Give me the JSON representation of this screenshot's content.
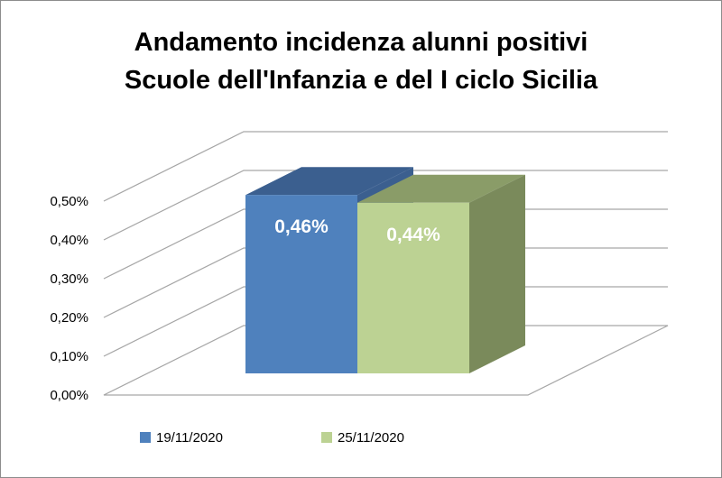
{
  "chart_data": {
    "type": "bar",
    "style": "3d",
    "title_lines": [
      "Andamento incidenza alunni positivi",
      "Scuole dell'Infanzia e del I ciclo Sicilia"
    ],
    "categories": [
      ""
    ],
    "series": [
      {
        "name": "19/11/2020",
        "values": [
          0.46
        ],
        "data_label": "0,46%",
        "color": "#4f81bd",
        "color_top": "#3b5f8f",
        "color_side": "#3b5f8f"
      },
      {
        "name": "25/11/2020",
        "values": [
          0.44
        ],
        "data_label": "0,44%",
        "color": "#bcd293",
        "color_top": "#8a9c68",
        "color_side": "#7a8a5b"
      }
    ],
    "y_ticks": [
      "0,00%",
      "0,10%",
      "0,20%",
      "0,30%",
      "0,40%",
      "0,50%"
    ],
    "ylim": [
      0,
      0.5
    ],
    "grid": true,
    "legend": "bottom",
    "xlabel": "",
    "ylabel": ""
  }
}
